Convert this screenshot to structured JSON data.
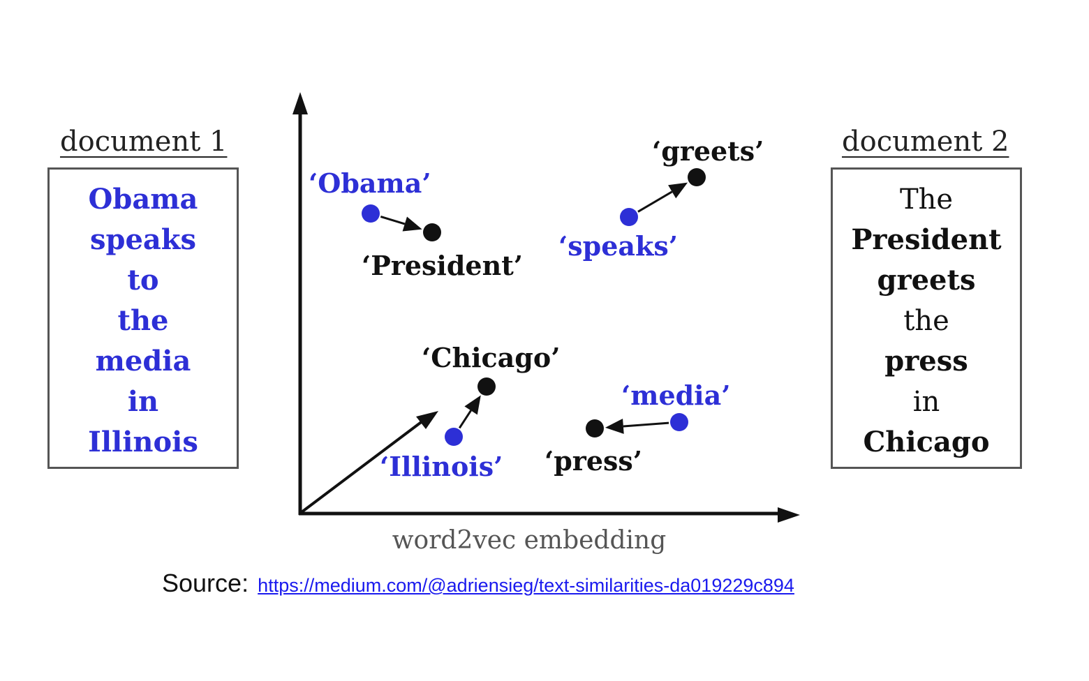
{
  "document1": {
    "title": "document 1",
    "words": [
      "Obama",
      "speaks",
      "to",
      "the",
      "media",
      "in",
      "Illinois"
    ],
    "color": "#2d2fd6"
  },
  "document2": {
    "title": "document 2",
    "words": [
      "The",
      "President",
      "greets",
      "the",
      "press",
      "in",
      "Chicago"
    ],
    "bold": [
      false,
      true,
      true,
      false,
      true,
      false,
      true
    ],
    "color": "#111111"
  },
  "embedding": {
    "axis_label": "word2vec embedding",
    "pairs": [
      {
        "from": "‘Obama’",
        "to": "‘President’"
      },
      {
        "from": "‘speaks’",
        "to": "‘greets’"
      },
      {
        "from": "‘Illinois’",
        "to": "‘Chicago’"
      },
      {
        "from": "‘media’",
        "to": "‘press’"
      }
    ],
    "doc1_color": "#2d2fd6",
    "doc2_color": "#111111"
  },
  "source": {
    "label": "Source:",
    "url": "https://medium.com/@adriensieg/text-similarities-da019229c894"
  }
}
